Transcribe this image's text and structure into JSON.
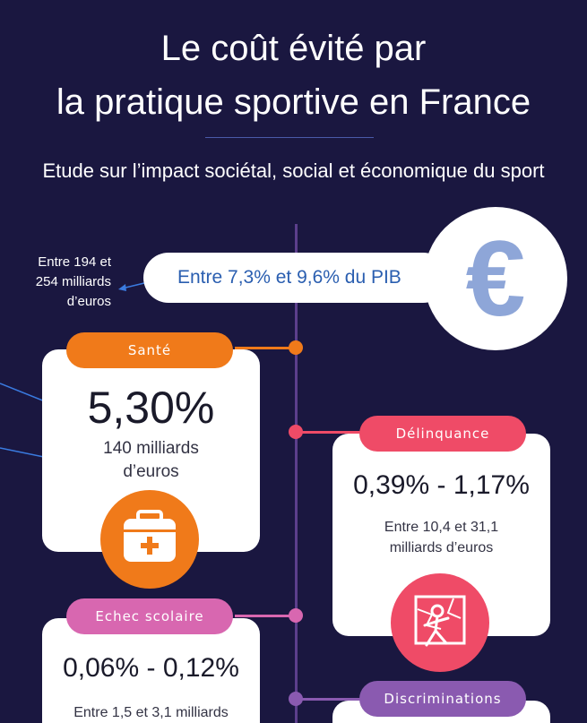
{
  "title_line1": "Le coût évité par",
  "title_line2": "la pratique sportive en France",
  "subtitle": "Etude sur l’impact sociétal, social et économique du sport",
  "total": {
    "amount_line1": "Entre 194 et",
    "amount_line2": "254 milliards",
    "amount_line3": "d’euros",
    "pib": "Entre 7,3% et 9,6% du PIB",
    "icon": "euro-icon"
  },
  "cards": {
    "sante": {
      "label": "Santé",
      "value": "5,30%",
      "amount_line1": "140 milliards",
      "amount_line2": "d’euros",
      "color": "#f07a1a",
      "icon": "first-aid-kit-icon"
    },
    "delinquance": {
      "label": "Délinquance",
      "value": "0,39% - 1,17%",
      "amount_line1": "Entre 10,4 et 31,1",
      "amount_line2": "milliards d’euros",
      "color": "#ef4b67",
      "icon": "broken-window-burglar-icon"
    },
    "echec": {
      "label": "Echec scolaire",
      "value": "0,06% - 0,12%",
      "amount_line1": "Entre 1,5 et 3,1 milliards",
      "color": "#d867b0"
    },
    "discriminations": {
      "label": "Discriminations",
      "color": "#8a5ab0"
    }
  }
}
